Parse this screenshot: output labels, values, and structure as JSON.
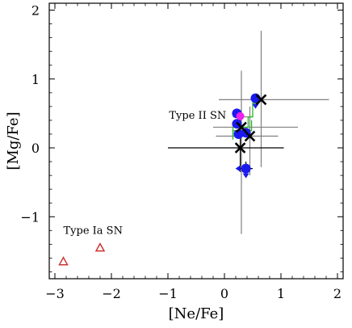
{
  "chart_data": {
    "type": "scatter",
    "xlabel": "[Ne/Fe]",
    "ylabel": "[Mg/Fe]",
    "xlim": [
      -3.1,
      2.1
    ],
    "ylim": [
      -1.9,
      2.1
    ],
    "xticks": [
      -3,
      -2,
      -1,
      0,
      1,
      2
    ],
    "xtick_labels": [
      "−3",
      "−2",
      "−1",
      "0",
      "1",
      "2"
    ],
    "yticks": [
      -1,
      0,
      1,
      2
    ],
    "ytick_labels": [
      "−1",
      "0",
      "1",
      "2"
    ],
    "grid": false,
    "colors": {
      "type_ia": "#cc3333",
      "obs": "#1a1aee",
      "magenta": "#ee22ee",
      "cross": "#000000",
      "model": "#22bb22",
      "errbar_gray": "#808080",
      "errbar_black": "#000000"
    },
    "annotations": [
      {
        "text": "Type II SN",
        "x": -0.98,
        "y": 0.42
      },
      {
        "text": "Type Ia SN",
        "x": -2.85,
        "y": -1.25
      }
    ],
    "series": [
      {
        "marker": "triangle",
        "points": [
          {
            "x": -2.85,
            "y": -1.65
          },
          {
            "x": -2.2,
            "y": -1.45
          }
        ]
      },
      {
        "marker": "circle",
        "points": [
          {
            "x": 0.22,
            "y": 0.5
          },
          {
            "x": 0.22,
            "y": 0.35
          },
          {
            "x": 0.25,
            "y": 0.2
          },
          {
            "x": 0.38,
            "y": 0.22
          },
          {
            "x": 0.55,
            "y": 0.72
          },
          {
            "x": 0.38,
            "y": -0.3
          }
        ]
      },
      {
        "marker": "circle",
        "points": [
          {
            "x": 0.28,
            "y": 0.46
          }
        ]
      },
      {
        "marker": "cross",
        "points": [
          {
            "x": 0.65,
            "y": 0.7
          },
          {
            "x": 0.3,
            "y": 0.3
          },
          {
            "x": 0.45,
            "y": 0.17
          },
          {
            "x": 0.28,
            "y": 0.0
          }
        ]
      },
      {
        "marker": "step-line",
        "points": [
          {
            "x": 0.15,
            "y": 0.2
          },
          {
            "x": 0.15,
            "y": 0.3
          },
          {
            "x": 0.42,
            "y": 0.3
          },
          {
            "x": 0.42,
            "y": 0.45
          },
          {
            "x": 0.5,
            "y": 0.45
          },
          {
            "x": 0.5,
            "y": 0.65
          },
          {
            "x": 0.62,
            "y": 0.65
          }
        ]
      },
      {
        "marker": "step-line",
        "points": [
          {
            "x": 0.15,
            "y": 0.12
          },
          {
            "x": 0.15,
            "y": 0.25
          },
          {
            "x": 0.48,
            "y": 0.25
          },
          {
            "x": 0.48,
            "y": 0.4
          }
        ]
      }
    ],
    "error_bars": [
      {
        "x": 0.3,
        "y": 0.45,
        "xlo": 0.15,
        "xhi": 0.45,
        "ylo": -1.25,
        "yhi": 1.12,
        "color": "errbar_gray"
      },
      {
        "x": 0.3,
        "y": 0.3,
        "xlo": -0.2,
        "xhi": 1.3,
        "ylo": 0.05,
        "yhi": 0.55,
        "color": "errbar_gray"
      },
      {
        "x": 0.65,
        "y": 0.7,
        "xlo": -0.1,
        "xhi": 1.85,
        "ylo": -0.28,
        "yhi": 1.7,
        "color": "errbar_gray"
      },
      {
        "x": 0.45,
        "y": 0.17,
        "xlo": -0.15,
        "xhi": 0.95,
        "ylo": -0.4,
        "yhi": 0.6,
        "color": "errbar_gray"
      },
      {
        "x": 0.28,
        "y": 0.0,
        "xlo": -1.0,
        "xhi": 1.05,
        "ylo": -0.35,
        "yhi": 0.45,
        "color": "errbar_black"
      },
      {
        "x": 0.38,
        "y": -0.3,
        "xlo": 0.25,
        "xhi": 0.5,
        "ylo": -0.38,
        "yhi": -0.2,
        "color": "errbar_black"
      }
    ]
  }
}
